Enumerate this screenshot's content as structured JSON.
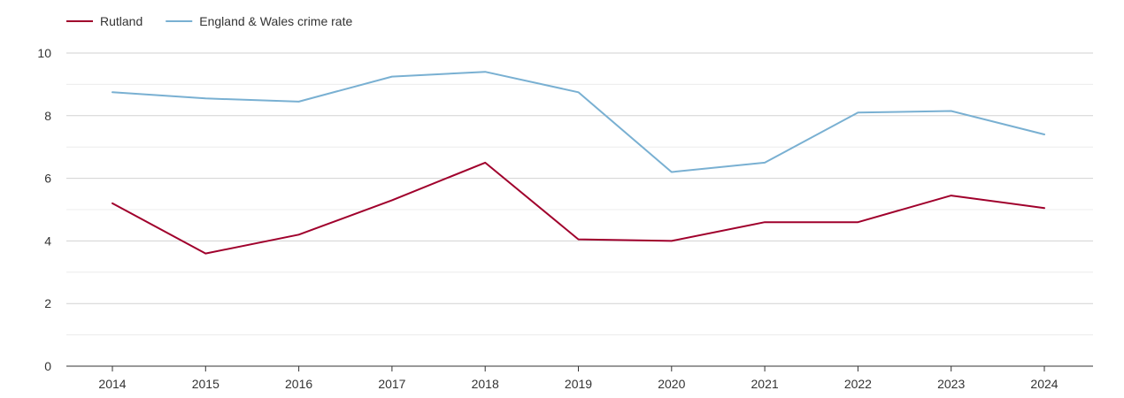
{
  "chart_data": {
    "type": "line",
    "title": "",
    "xlabel": "",
    "ylabel": "",
    "categories": [
      "2014",
      "2015",
      "2016",
      "2017",
      "2018",
      "2019",
      "2020",
      "2021",
      "2022",
      "2023",
      "2024"
    ],
    "ylim": [
      0,
      10
    ],
    "yticks": [
      "0",
      "2",
      "4",
      "6",
      "8",
      "10"
    ],
    "grid": true,
    "legend_position": "top-left",
    "series": [
      {
        "name": "Rutland",
        "color": "#a0002c",
        "values": [
          5.2,
          3.6,
          4.2,
          5.3,
          6.5,
          4.05,
          4.0,
          4.6,
          4.6,
          5.45,
          5.05
        ]
      },
      {
        "name": "England & Wales crime rate",
        "color": "#79b0d2",
        "values": [
          8.75,
          8.55,
          8.45,
          9.25,
          9.4,
          8.75,
          6.2,
          6.5,
          8.1,
          8.15,
          7.4
        ]
      }
    ]
  }
}
